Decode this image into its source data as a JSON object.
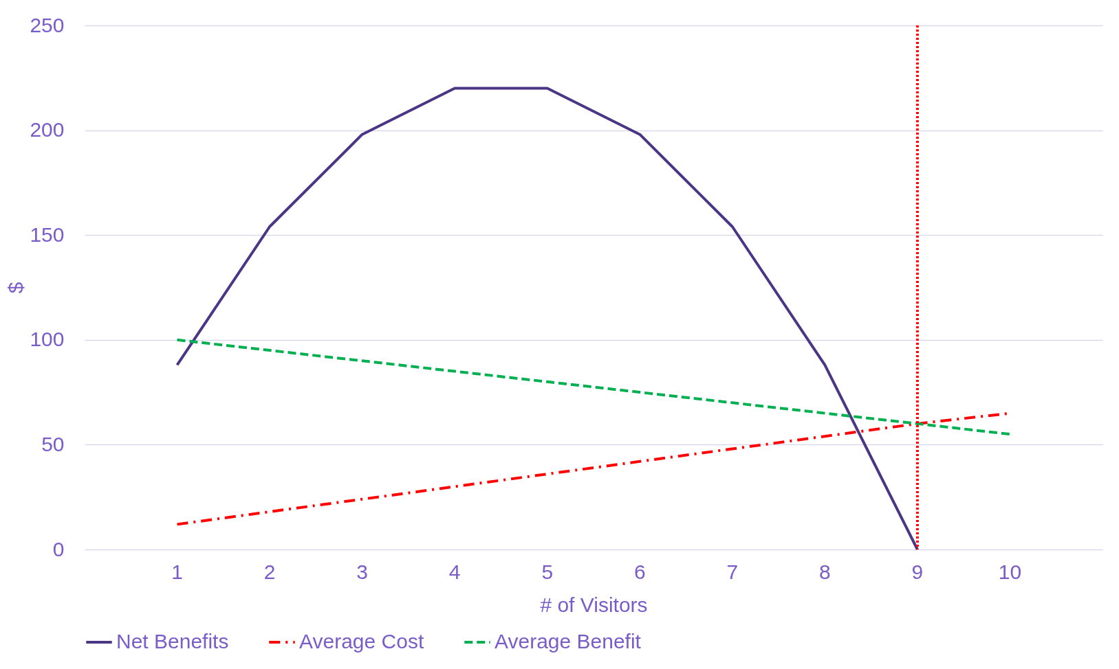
{
  "chart_data": {
    "type": "line",
    "xlabel": "# of Visitors",
    "ylabel": "$",
    "categories": [
      "1",
      "2",
      "3",
      "4",
      "5",
      "6",
      "7",
      "8",
      "9",
      "10"
    ],
    "series": [
      {
        "name": "Net Benefits",
        "color": "#4b3585",
        "line_style": "solid",
        "values": [
          88,
          154,
          198,
          220,
          220,
          198,
          154,
          88,
          0,
          null
        ]
      },
      {
        "name": "Average Cost",
        "color": "#ff0000",
        "line_style": "dashdot",
        "values": [
          12,
          18,
          24,
          30,
          36,
          42,
          48,
          54,
          60,
          65
        ]
      },
      {
        "name": "Average Benefit",
        "color": "#00b050",
        "line_style": "dashed",
        "values": [
          100,
          95,
          90,
          85,
          80,
          75,
          70,
          65,
          60,
          55
        ]
      }
    ],
    "ylim": [
      0,
      250
    ],
    "yticks": [
      0,
      50,
      100,
      150,
      200,
      250
    ],
    "grid": "y",
    "legend": "bottom",
    "marker": "none",
    "ref_lines": [
      {
        "axis": "x",
        "value": "9",
        "color": "#ff0000",
        "line_style": "dotted"
      }
    ]
  }
}
